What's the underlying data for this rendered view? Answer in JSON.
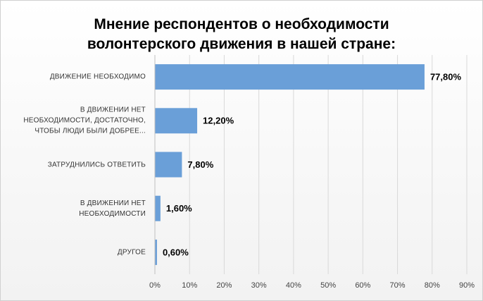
{
  "chart_data": {
    "type": "bar",
    "orientation": "horizontal",
    "title": "Мнение респондентов о необходимости волонтерского движения в нашей стране:",
    "categories": [
      "ДВИЖЕНИЕ  НЕОБХОДИМО",
      "В ДВИЖЕНИИ  НЕТ НЕОБХОДИМОСТИ, ДОСТАТОЧНО, ЧТОБЫ ЛЮДИ БЫЛИ ДОБРЕЕ...",
      "ЗАТРУДНИЛИСЬ  ОТВЕТИТЬ",
      "В ДВИЖЕНИИ  НЕТ НЕОБХОДИМОСТИ",
      "ДРУГОЕ"
    ],
    "values": [
      77.8,
      12.2,
      7.8,
      1.6,
      0.6
    ],
    "value_labels": [
      "77,80%",
      "12,20%",
      "7,80%",
      "1,60%",
      "0,60%"
    ],
    "color": "#6a9fd8",
    "xlim": [
      0,
      90
    ],
    "xticks": [
      {
        "value": 0,
        "label": "0%"
      },
      {
        "value": 10,
        "label": "10%"
      },
      {
        "value": 20,
        "label": "20%"
      },
      {
        "value": 30,
        "label": "30%"
      },
      {
        "value": 40,
        "label": "40%"
      },
      {
        "value": 50,
        "label": "50%"
      },
      {
        "value": 60,
        "label": "60%"
      },
      {
        "value": 70,
        "label": "70%"
      },
      {
        "value": 80,
        "label": "80%"
      },
      {
        "value": 90,
        "label": "90%"
      }
    ],
    "grid": true
  }
}
